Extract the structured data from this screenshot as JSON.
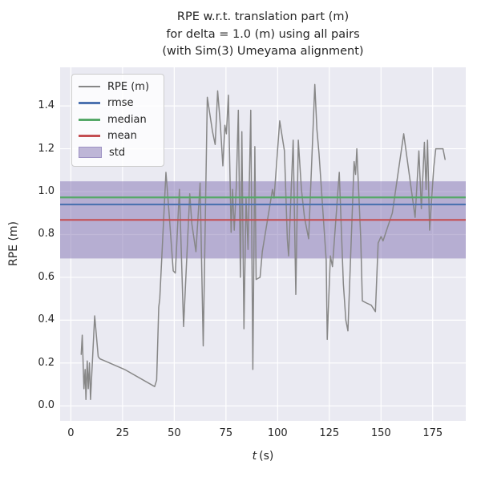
{
  "title": {
    "text": "RPE w.r.t. translation part (m)\nfor delta = 1.0 (m) using all pairs\n(with Sim(3) Umeyama alignment)"
  },
  "axes": {
    "xlabel_var": "t",
    "xlabel_unit": "(s)",
    "ylabel": "RPE (m)"
  },
  "legend": {
    "items": [
      {
        "label": "RPE (m)",
        "color": "#878787",
        "type": "line",
        "thickness": 2
      },
      {
        "label": "rmse",
        "color": "#4c72b0",
        "type": "line",
        "thickness": 3
      },
      {
        "label": "median",
        "color": "#55a868",
        "type": "line",
        "thickness": 3
      },
      {
        "label": "mean",
        "color": "#c44e52",
        "type": "line",
        "thickness": 3
      },
      {
        "label": "std",
        "color": "rgba(129,114,178,0.5)",
        "type": "patch",
        "thickness": 12
      }
    ]
  },
  "colors": {
    "figure_bg": "#ffffff",
    "axes_bg": "#eaeaf2",
    "grid": "#ffffff",
    "rpe_line": "#878787",
    "rmse": "#4c72b0",
    "median": "#55a868",
    "mean": "#c44e52",
    "std_fill": "rgba(129,114,178,0.5)",
    "text": "#262626"
  },
  "chart_data": {
    "type": "line",
    "title": "RPE w.r.t. translation part (m) for delta = 1.0 (m) using all pairs (with Sim(3) Umeyama alignment)",
    "xlabel": "t (s)",
    "ylabel": "RPE (m)",
    "xlim": [
      -5.2,
      191.0
    ],
    "ylim": [
      -0.07,
      1.58
    ],
    "xticks": [
      0,
      25,
      50,
      75,
      100,
      125,
      150,
      175
    ],
    "yticks": [
      0.0,
      0.2,
      0.4,
      0.6,
      0.8,
      1.0,
      1.2,
      1.4
    ],
    "grid": true,
    "legend_position": "upper left",
    "stats": {
      "rmse": 0.94,
      "median": 0.973,
      "mean": 0.868,
      "std": 0.18
    },
    "series": [
      {
        "name": "RPE (m)",
        "x": [
          5.0,
          5.5,
          6.3,
          6.9,
          7.3,
          7.9,
          8.4,
          9.0,
          9.5,
          11.5,
          13.2,
          14.0,
          26,
          40.5,
          41.5,
          42.5,
          43.0,
          46,
          47.5,
          49.5,
          50.5,
          52.5,
          54.5,
          57.5,
          58.5,
          60.5,
          62.5,
          64,
          66,
          68.5,
          69.8,
          71,
          72.3,
          73.5,
          74.5,
          75.2,
          76.2,
          77.5,
          78.2,
          79,
          80,
          81,
          82,
          82.7,
          83.7,
          84.7,
          85.7,
          87,
          88,
          89,
          89.6,
          91.5,
          92.6,
          97.5,
          98.3,
          101,
          103.3,
          104.7,
          105.3,
          107.5,
          108.8,
          110,
          111.5,
          113,
          115,
          118,
          119,
          120,
          123.5,
          124,
          125.5,
          126.5,
          129.8,
          131.8,
          133,
          134,
          137,
          137.7,
          138.3,
          140.2,
          141,
          143,
          145.3,
          147.3,
          148.6,
          150,
          151,
          155.5,
          161,
          166.5,
          168.3,
          169.5,
          171,
          171.8,
          172.5,
          173.5,
          175.5,
          176.5,
          180,
          181
        ],
        "y": [
          0.24,
          0.33,
          0.08,
          0.17,
          0.03,
          0.21,
          0.08,
          0.2,
          0.03,
          0.42,
          0.23,
          0.22,
          0.17,
          0.09,
          0.12,
          0.46,
          0.5,
          1.09,
          0.9,
          0.63,
          0.62,
          1.01,
          0.37,
          0.99,
          0.85,
          0.72,
          1.04,
          0.28,
          1.44,
          1.28,
          1.22,
          1.47,
          1.31,
          1.12,
          1.31,
          1.27,
          1.45,
          0.81,
          1.01,
          0.82,
          1.02,
          1.38,
          0.6,
          1.28,
          0.36,
          0.97,
          0.73,
          1.38,
          0.17,
          1.21,
          0.59,
          0.6,
          0.72,
          1.01,
          0.97,
          1.33,
          1.19,
          0.78,
          0.7,
          1.24,
          0.52,
          1.24,
          1.01,
          0.88,
          0.78,
          1.5,
          1.29,
          1.18,
          0.68,
          0.31,
          0.7,
          0.65,
          1.09,
          0.57,
          0.4,
          0.35,
          1.14,
          1.08,
          1.2,
          0.78,
          0.49,
          0.48,
          0.47,
          0.44,
          0.76,
          0.79,
          0.77,
          0.9,
          1.27,
          0.88,
          1.19,
          0.92,
          1.23,
          1.01,
          1.24,
          0.82,
          1.11,
          1.2,
          1.2,
          1.15
        ]
      }
    ]
  }
}
